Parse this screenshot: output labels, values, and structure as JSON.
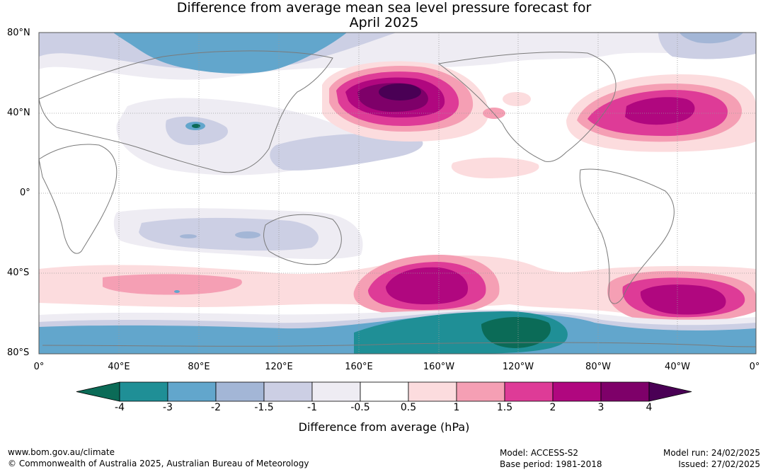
{
  "title_line1": "Difference from average mean sea level pressure forecast for",
  "title_line2": "April 2025",
  "lat_labels": [
    "80°N",
    "40°N",
    "0°",
    "40°S",
    "80°S"
  ],
  "lon_labels": [
    "0°",
    "40°E",
    "80°E",
    "120°E",
    "160°E",
    "160°W",
    "120°W",
    "80°W",
    "40°W",
    "0°"
  ],
  "colorbar": {
    "ticks": [
      "-4",
      "-3",
      "-2",
      "-1.5",
      "-1",
      "-0.5",
      "0.5",
      "1",
      "1.5",
      "2",
      "3",
      "4"
    ],
    "colors": [
      "#0b6b57",
      "#1f8f96",
      "#62a6cc",
      "#a3b6d6",
      "#cccfe4",
      "#eeecf3",
      "#ffffff",
      "#fcdcde",
      "#f59fb4",
      "#de3b97",
      "#b0077f",
      "#7e0069",
      "#4a0055"
    ],
    "label": "Difference from average (hPa)"
  },
  "footer": {
    "website": "www.bom.gov.au/climate",
    "copyright": "© Commonwealth of Australia 2025, Australian Bureau of Meteorology",
    "model": "Model: ACCESS-S2",
    "base_period": "Base period: 1981-2018",
    "model_run": "Model run: 24/02/2025",
    "issued": "Issued: 27/02/2025"
  }
}
